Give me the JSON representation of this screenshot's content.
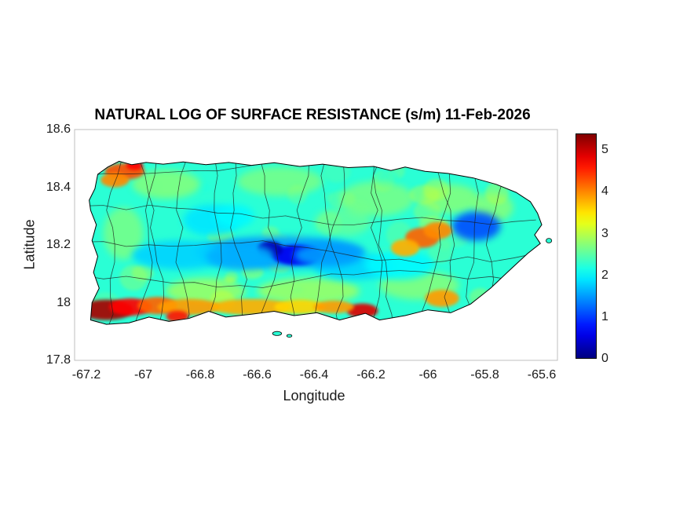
{
  "chart_data": {
    "type": "heatmap",
    "title": "NATURAL LOG OF SURFACE RESISTANCE (s/m) 11-Feb-2026",
    "date": "11-Feb-2026",
    "xlabel": "Longitude",
    "ylabel": "Latitude",
    "units": "ln(s/m)",
    "region": "Puerto Rico with municipality boundaries",
    "xlim": [
      -67.24,
      -65.55
    ],
    "ylim": [
      17.8,
      18.6
    ],
    "xticks": [
      -67.2,
      -67.0,
      -66.8,
      -66.6,
      -66.4,
      -66.2,
      -66.0,
      -65.8,
      -65.6
    ],
    "xtick_labels": [
      "-67.2",
      "-67",
      "-66.8",
      "-66.6",
      "-66.4",
      "-66.2",
      "-66",
      "-65.8",
      "-65.6"
    ],
    "yticks": [
      17.8,
      18.0,
      18.2,
      18.4,
      18.6
    ],
    "ytick_labels": [
      "17.8",
      "18",
      "18.2",
      "18.4",
      "18.6"
    ],
    "colormap": "jet",
    "clim": [
      0,
      5.4
    ],
    "colorbar_ticks": [
      0,
      1,
      2,
      3,
      4,
      5
    ],
    "colorbar_tick_labels": [
      "0",
      "1",
      "2",
      "3",
      "4",
      "5"
    ],
    "base_value": 2.25,
    "grid": false,
    "legend": "colorbar-right",
    "sample_grid": {
      "note": "values estimated from colormap",
      "lons": [
        -67.1,
        -66.9,
        -66.7,
        -66.5,
        -66.3,
        -66.1,
        -65.9,
        -65.7
      ],
      "lats": [
        18.45,
        18.3,
        18.15,
        18.0
      ],
      "values": [
        [
          4.0,
          2.6,
          2.4,
          2.8,
          2.3,
          2.3,
          2.5,
          2.2
        ],
        [
          2.4,
          2.2,
          1.9,
          2.3,
          2.4,
          2.3,
          1.5,
          2.4
        ],
        [
          2.3,
          1.7,
          1.5,
          0.6,
          1.5,
          2.0,
          2.4,
          2.5
        ],
        [
          5.0,
          4.2,
          3.6,
          3.4,
          4.6,
          3.0,
          3.8,
          2.6
        ]
      ]
    },
    "island_outline": [
      [
        -67.16,
        18.445
      ],
      [
        -67.125,
        18.47
      ],
      [
        -67.085,
        18.49
      ],
      [
        -67.04,
        18.478
      ],
      [
        -66.99,
        18.486
      ],
      [
        -66.93,
        18.48
      ],
      [
        -66.86,
        18.488
      ],
      [
        -66.78,
        18.478
      ],
      [
        -66.7,
        18.486
      ],
      [
        -66.62,
        18.476
      ],
      [
        -66.54,
        18.485
      ],
      [
        -66.45,
        18.472
      ],
      [
        -66.37,
        18.48
      ],
      [
        -66.28,
        18.468
      ],
      [
        -66.19,
        18.472
      ],
      [
        -66.13,
        18.458
      ],
      [
        -66.08,
        18.47
      ],
      [
        -66.01,
        18.455
      ],
      [
        -65.93,
        18.448
      ],
      [
        -65.84,
        18.432
      ],
      [
        -65.76,
        18.41
      ],
      [
        -65.69,
        18.382
      ],
      [
        -65.64,
        18.35
      ],
      [
        -65.615,
        18.31
      ],
      [
        -65.6,
        18.27
      ],
      [
        -65.625,
        18.235
      ],
      [
        -65.605,
        18.205
      ],
      [
        -65.65,
        18.17
      ],
      [
        -65.71,
        18.115
      ],
      [
        -65.78,
        18.05
      ],
      [
        -65.85,
        17.995
      ],
      [
        -65.92,
        17.965
      ],
      [
        -66.0,
        17.975
      ],
      [
        -66.08,
        17.955
      ],
      [
        -66.17,
        17.94
      ],
      [
        -66.22,
        17.963
      ],
      [
        -66.31,
        17.94
      ],
      [
        -66.39,
        17.965
      ],
      [
        -66.47,
        17.955
      ],
      [
        -66.54,
        17.97
      ],
      [
        -66.62,
        17.96
      ],
      [
        -66.71,
        17.95
      ],
      [
        -66.77,
        17.97
      ],
      [
        -66.84,
        17.945
      ],
      [
        -66.91,
        17.935
      ],
      [
        -66.98,
        17.95
      ],
      [
        -67.05,
        17.93
      ],
      [
        -67.13,
        17.925
      ],
      [
        -67.185,
        17.94
      ],
      [
        -67.18,
        18.0
      ],
      [
        -67.155,
        18.05
      ],
      [
        -67.175,
        18.105
      ],
      [
        -67.16,
        18.16
      ],
      [
        -67.18,
        18.215
      ],
      [
        -67.165,
        18.27
      ],
      [
        -67.185,
        18.32
      ],
      [
        -67.19,
        18.355
      ],
      [
        -67.17,
        18.395
      ]
    ],
    "islets": [
      {
        "lon": -66.53,
        "lat": 17.893,
        "rx": 0.016,
        "ry": 0.007
      },
      {
        "lon": -66.487,
        "lat": 17.885,
        "rx": 0.009,
        "ry": 0.005
      },
      {
        "lon": -65.575,
        "lat": 18.215,
        "rx": 0.01,
        "ry": 0.008
      }
    ],
    "features": [
      {
        "lon": -66.92,
        "lat": 18.41,
        "rx": 0.12,
        "ry": 0.05,
        "v": 3.0
      },
      {
        "lon": -66.52,
        "lat": 18.42,
        "rx": 0.15,
        "ry": 0.05,
        "v": 2.9
      },
      {
        "lon": -66.18,
        "lat": 18.36,
        "rx": 0.13,
        "ry": 0.06,
        "v": 2.9
      },
      {
        "lon": -65.92,
        "lat": 18.36,
        "rx": 0.1,
        "ry": 0.05,
        "v": 3.0
      },
      {
        "lon": -66.78,
        "lat": 18.04,
        "rx": 0.14,
        "ry": 0.045,
        "v": 3.2
      },
      {
        "lon": -66.42,
        "lat": 18.04,
        "rx": 0.18,
        "ry": 0.045,
        "v": 3.2
      },
      {
        "lon": -66.03,
        "lat": 18.06,
        "rx": 0.14,
        "ry": 0.05,
        "v": 3.0
      },
      {
        "lon": -67.07,
        "lat": 18.24,
        "rx": 0.07,
        "ry": 0.09,
        "v": 2.9
      },
      {
        "lon": -65.77,
        "lat": 18.33,
        "rx": 0.07,
        "ry": 0.05,
        "v": 3.0
      },
      {
        "lon": -66.3,
        "lat": 18.28,
        "rx": 0.1,
        "ry": 0.05,
        "v": 2.7
      },
      {
        "lon": -66.52,
        "lat": 18.175,
        "rx": 0.3,
        "ry": 0.055,
        "v": 1.5
      },
      {
        "lon": -66.46,
        "lat": 18.165,
        "rx": 0.09,
        "ry": 0.035,
        "v": 0.6
      },
      {
        "lon": -66.555,
        "lat": 18.185,
        "rx": 0.045,
        "ry": 0.028,
        "v": 0.3
      },
      {
        "lon": -66.87,
        "lat": 18.165,
        "rx": 0.17,
        "ry": 0.05,
        "v": 1.8
      },
      {
        "lon": -66.76,
        "lat": 18.285,
        "rx": 0.1,
        "ry": 0.055,
        "v": 1.9
      },
      {
        "lon": -66.68,
        "lat": 18.3,
        "rx": 0.07,
        "ry": 0.04,
        "v": 2.0
      },
      {
        "lon": -65.83,
        "lat": 18.265,
        "rx": 0.085,
        "ry": 0.05,
        "v": 1.1
      },
      {
        "lon": -66.26,
        "lat": 18.125,
        "rx": 0.14,
        "ry": 0.045,
        "v": 1.8
      },
      {
        "lon": -66.35,
        "lat": 18.165,
        "rx": 0.12,
        "ry": 0.04,
        "v": 1.5
      },
      {
        "lon": -66.66,
        "lat": 18.16,
        "rx": 0.12,
        "ry": 0.045,
        "v": 1.6
      },
      {
        "lon": -66.1,
        "lat": 18.13,
        "rx": 0.12,
        "ry": 0.05,
        "v": 2.0
      },
      {
        "lon": -67.13,
        "lat": 17.975,
        "rx": 0.095,
        "ry": 0.035,
        "v": 5.2
      },
      {
        "lon": -67.045,
        "lat": 17.985,
        "rx": 0.075,
        "ry": 0.03,
        "v": 4.7
      },
      {
        "lon": -66.95,
        "lat": 17.99,
        "rx": 0.07,
        "ry": 0.03,
        "v": 4.2
      },
      {
        "lon": -66.84,
        "lat": 17.985,
        "rx": 0.11,
        "ry": 0.028,
        "v": 3.9
      },
      {
        "lon": -66.62,
        "lat": 17.985,
        "rx": 0.14,
        "ry": 0.028,
        "v": 3.8
      },
      {
        "lon": -66.23,
        "lat": 17.972,
        "rx": 0.055,
        "ry": 0.025,
        "v": 4.9
      },
      {
        "lon": -66.02,
        "lat": 18.225,
        "rx": 0.06,
        "ry": 0.035,
        "v": 4.2
      },
      {
        "lon": -65.965,
        "lat": 18.25,
        "rx": 0.05,
        "ry": 0.03,
        "v": 4.0
      },
      {
        "lon": -66.08,
        "lat": 18.19,
        "rx": 0.05,
        "ry": 0.03,
        "v": 3.8
      },
      {
        "lon": -67.065,
        "lat": 18.455,
        "rx": 0.07,
        "ry": 0.028,
        "v": 4.3
      },
      {
        "lon": -67.1,
        "lat": 18.425,
        "rx": 0.05,
        "ry": 0.025,
        "v": 4.0
      },
      {
        "lon": -67.03,
        "lat": 18.475,
        "rx": 0.03,
        "ry": 0.015,
        "v": 4.7
      },
      {
        "lon": -66.88,
        "lat": 17.952,
        "rx": 0.04,
        "ry": 0.02,
        "v": 4.6
      },
      {
        "lon": -65.95,
        "lat": 18.015,
        "rx": 0.06,
        "ry": 0.03,
        "v": 3.9
      },
      {
        "lon": -66.45,
        "lat": 17.985,
        "rx": 0.09,
        "ry": 0.025,
        "v": 3.6
      },
      {
        "lon": -66.33,
        "lat": 17.985,
        "rx": 0.07,
        "ry": 0.022,
        "v": 3.9
      }
    ]
  }
}
